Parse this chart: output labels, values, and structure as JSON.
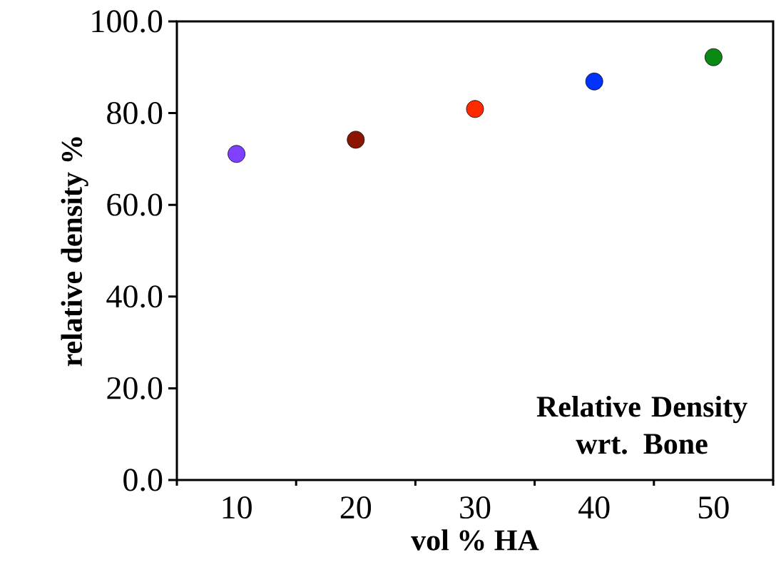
{
  "chart_data": {
    "type": "scatter",
    "xlabel": "vol % HA",
    "ylabel": "relative density %",
    "categories": [
      "10",
      "20",
      "30",
      "40",
      "50"
    ],
    "values": [
      71.1,
      74.2,
      80.9,
      86.9,
      92.2
    ],
    "colors": [
      "#8040ff",
      "#8b1500",
      "#ff2a00",
      "#0033ff",
      "#0a8a14"
    ],
    "ylim": [
      0,
      100
    ],
    "yticks": [
      {
        "value": 0,
        "label": "0.0"
      },
      {
        "value": 20,
        "label": "20.0"
      },
      {
        "value": 40,
        "label": "40.0"
      },
      {
        "value": 60,
        "label": "60.0"
      },
      {
        "value": 80,
        "label": "80.0"
      },
      {
        "value": 100,
        "label": "100.0"
      }
    ],
    "marker": "circle",
    "annotations": [
      "Relative Density wrt. Bone"
    ]
  }
}
